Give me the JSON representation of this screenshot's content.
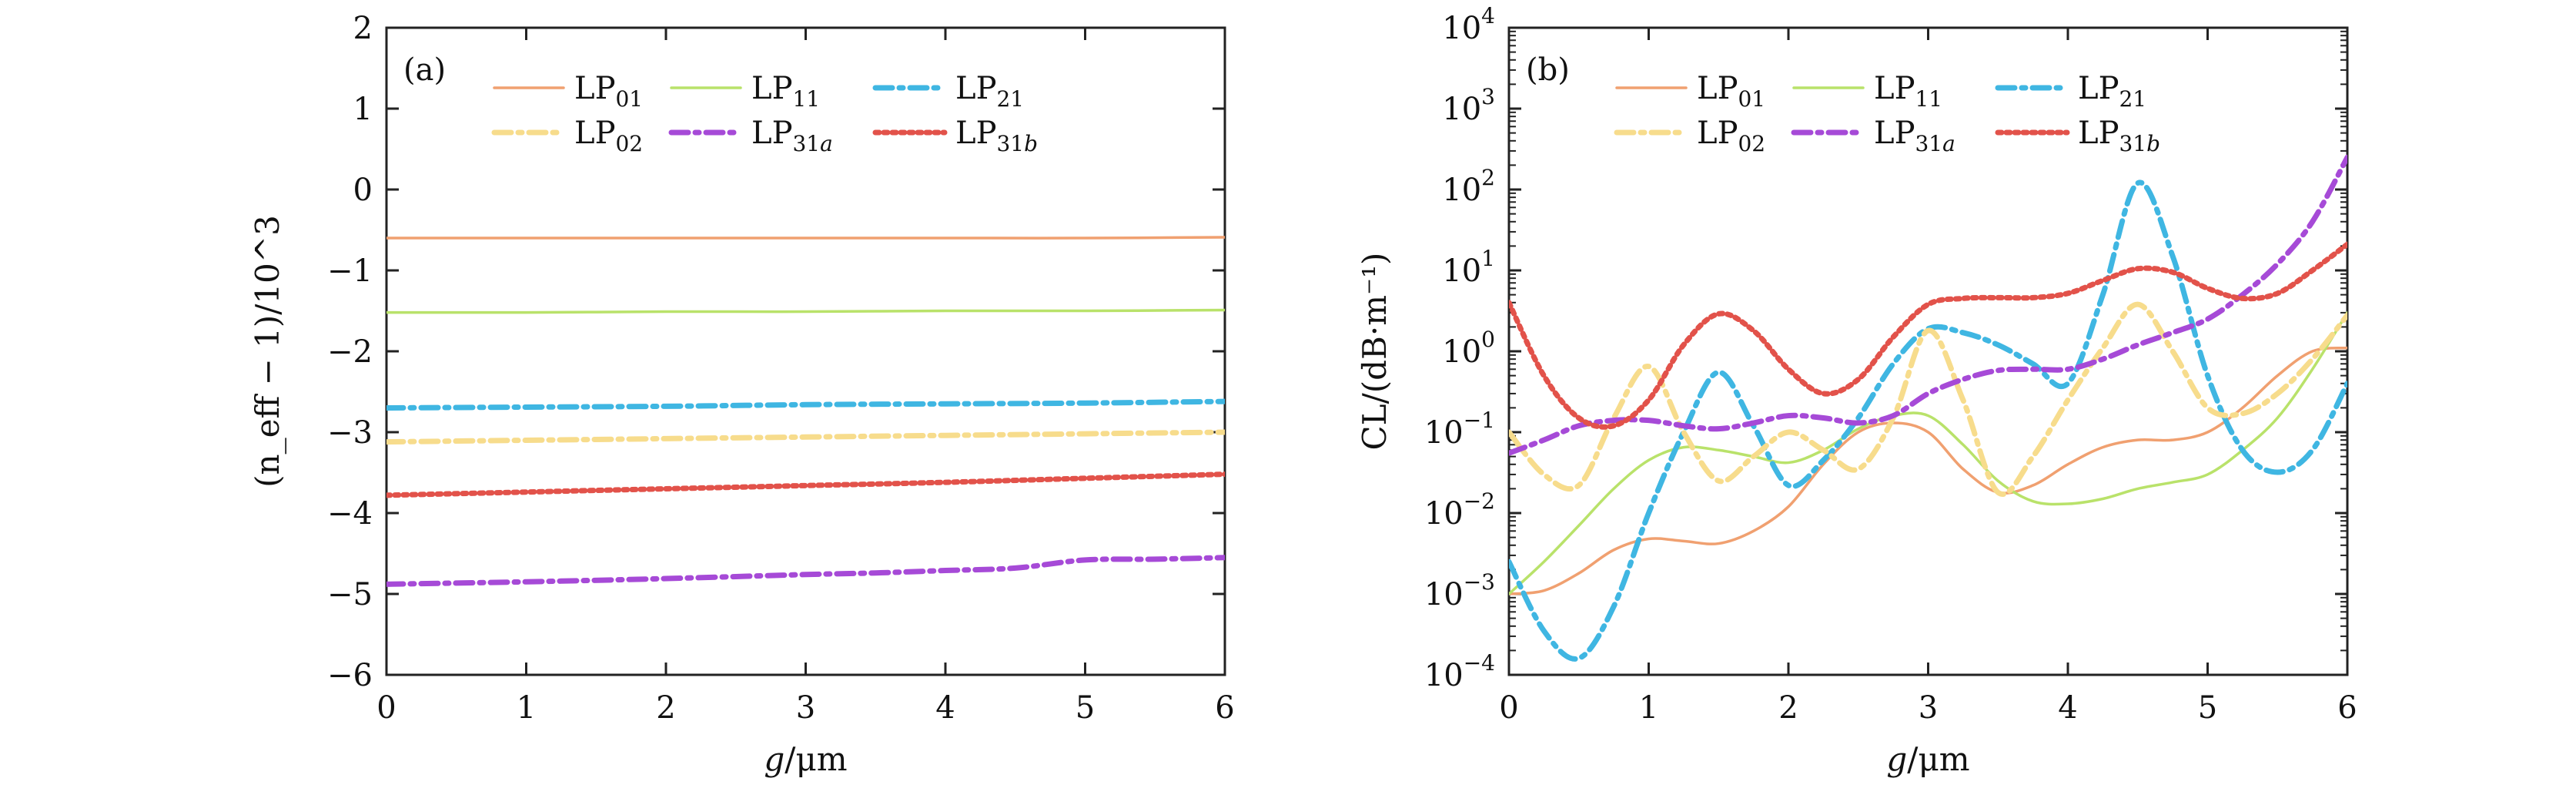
{
  "figure_labels": [
    "(a)",
    "(b)"
  ],
  "chart_data": [
    {
      "type": "line",
      "panel": "(a)",
      "xlabel": "g/μm",
      "ylabel": "(n_eff − 1)/10^3",
      "xlim": [
        0,
        6
      ],
      "ylim": [
        -6,
        2
      ],
      "xticks": [
        "0",
        "1",
        "2",
        "3",
        "4",
        "5",
        "6"
      ],
      "yticks": [
        "−6",
        "−5",
        "−4",
        "−3",
        "−2",
        "−1",
        "0",
        "1",
        "2"
      ],
      "legend": {
        "position": "top",
        "labels": [
          {
            "name": "LP",
            "sub": "01"
          },
          {
            "name": "LP",
            "sub": "11"
          },
          {
            "name": "LP",
            "sub": "21"
          },
          {
            "name": "LP",
            "sub": "02"
          },
          {
            "name": "LP",
            "sub": "31a"
          },
          {
            "name": "LP",
            "sub": "31b"
          }
        ]
      },
      "series": [
        {
          "name": "LP01",
          "color": "#f0a070",
          "style": "solid",
          "x": [
            0,
            1,
            2,
            3,
            4,
            5,
            6
          ],
          "y": [
            -0.6,
            -0.6,
            -0.6,
            -0.6,
            -0.6,
            -0.6,
            -0.59
          ]
        },
        {
          "name": "LP11",
          "color": "#b9e26a",
          "style": "solid",
          "x": [
            0,
            1,
            2,
            3,
            4,
            5,
            6
          ],
          "y": [
            -1.52,
            -1.52,
            -1.51,
            -1.51,
            -1.5,
            -1.5,
            -1.49
          ]
        },
        {
          "name": "LP21",
          "color": "#3fb6e2",
          "style": "dashdot",
          "x": [
            0,
            1,
            2,
            3,
            4,
            5,
            6
          ],
          "y": [
            -2.7,
            -2.69,
            -2.68,
            -2.66,
            -2.65,
            -2.64,
            -2.62
          ]
        },
        {
          "name": "LP02",
          "color": "#f7dc8c",
          "style": "dashdot",
          "x": [
            0,
            1,
            2,
            3,
            4,
            5,
            6
          ],
          "y": [
            -3.12,
            -3.1,
            -3.08,
            -3.06,
            -3.04,
            -3.02,
            -3.0
          ]
        },
        {
          "name": "LP31a",
          "color": "#a64ad7",
          "style": "dashdot",
          "x": [
            0,
            1,
            2,
            3,
            3.5,
            4,
            4.5,
            5,
            5.5,
            6
          ],
          "y": [
            -4.88,
            -4.85,
            -4.81,
            -4.76,
            -4.74,
            -4.71,
            -4.68,
            -4.58,
            -4.57,
            -4.55
          ]
        },
        {
          "name": "LP31b",
          "color": "#e2524a",
          "style": "dotted",
          "x": [
            0,
            1,
            2,
            3,
            4,
            5,
            6
          ],
          "y": [
            -3.78,
            -3.74,
            -3.7,
            -3.66,
            -3.62,
            -3.57,
            -3.52
          ]
        }
      ]
    },
    {
      "type": "line",
      "panel": "(b)",
      "xlabel": "g/μm",
      "ylabel": "CL/(dB·m⁻¹)",
      "yscale": "log",
      "xlim": [
        0,
        6
      ],
      "ylim_exp": [
        -4,
        4
      ],
      "xticks": [
        "0",
        "1",
        "2",
        "3",
        "4",
        "5",
        "6"
      ],
      "yticks": [
        {
          "base": "10",
          "exp": "−4"
        },
        {
          "base": "10",
          "exp": "−3"
        },
        {
          "base": "10",
          "exp": "−2"
        },
        {
          "base": "10",
          "exp": "−1"
        },
        {
          "base": "10",
          "exp": "0"
        },
        {
          "base": "10",
          "exp": "1"
        },
        {
          "base": "10",
          "exp": "2"
        },
        {
          "base": "10",
          "exp": "3"
        },
        {
          "base": "10",
          "exp": "4"
        }
      ],
      "legend": {
        "position": "top",
        "labels": [
          {
            "name": "LP",
            "sub": "01"
          },
          {
            "name": "LP",
            "sub": "11"
          },
          {
            "name": "LP",
            "sub": "21"
          },
          {
            "name": "LP",
            "sub": "02"
          },
          {
            "name": "LP",
            "sub": "31a"
          },
          {
            "name": "LP",
            "sub": "31b"
          }
        ]
      },
      "series": [
        {
          "name": "LP01",
          "color": "#f0a070",
          "style": "solid",
          "x": [
            0,
            0.25,
            0.5,
            0.75,
            1.0,
            1.25,
            1.5,
            1.75,
            2.0,
            2.25,
            2.5,
            2.75,
            3.0,
            3.25,
            3.5,
            3.75,
            4.0,
            4.25,
            4.5,
            4.75,
            5.0,
            5.25,
            5.5,
            5.75,
            6.0
          ],
          "y": [
            0.001,
            0.0011,
            0.0018,
            0.0035,
            0.0048,
            0.0045,
            0.0042,
            0.006,
            0.012,
            0.04,
            0.1,
            0.13,
            0.1,
            0.035,
            0.018,
            0.022,
            0.04,
            0.065,
            0.08,
            0.08,
            0.1,
            0.2,
            0.5,
            1.0,
            1.1
          ]
        },
        {
          "name": "LP11",
          "color": "#b9e26a",
          "style": "solid",
          "x": [
            0,
            0.25,
            0.5,
            0.75,
            1.0,
            1.25,
            1.5,
            1.75,
            2.0,
            2.25,
            2.5,
            2.75,
            3.0,
            3.25,
            3.5,
            3.75,
            4.0,
            4.25,
            4.5,
            4.75,
            5.0,
            5.25,
            5.5,
            5.75,
            6.0
          ],
          "y": [
            0.001,
            0.0025,
            0.007,
            0.02,
            0.045,
            0.065,
            0.06,
            0.05,
            0.042,
            0.06,
            0.11,
            0.16,
            0.16,
            0.07,
            0.025,
            0.014,
            0.013,
            0.015,
            0.02,
            0.024,
            0.03,
            0.06,
            0.15,
            0.6,
            3.0
          ]
        },
        {
          "name": "LP21",
          "color": "#3fb6e2",
          "style": "dashdot",
          "x": [
            0,
            0.25,
            0.5,
            0.75,
            1.0,
            1.25,
            1.5,
            1.75,
            2.0,
            2.25,
            2.5,
            2.75,
            3.0,
            3.25,
            3.5,
            3.75,
            4.0,
            4.25,
            4.5,
            4.75,
            5.0,
            5.25,
            5.5,
            5.75,
            6.0
          ],
          "y": [
            0.0025,
            0.00035,
            0.00016,
            0.0007,
            0.01,
            0.1,
            0.55,
            0.12,
            0.022,
            0.045,
            0.15,
            0.7,
            1.9,
            1.7,
            1.2,
            0.7,
            0.4,
            5,
            120,
            15,
            0.5,
            0.06,
            0.032,
            0.06,
            0.4
          ]
        },
        {
          "name": "LP02",
          "color": "#f7dc8c",
          "style": "dashdot",
          "x": [
            0,
            0.25,
            0.5,
            0.75,
            1.0,
            1.25,
            1.5,
            1.75,
            2.0,
            2.25,
            2.5,
            2.75,
            3.0,
            3.25,
            3.5,
            3.75,
            4.0,
            4.25,
            4.5,
            4.75,
            5.0,
            5.25,
            5.5,
            5.75,
            6.0
          ],
          "y": [
            0.1,
            0.03,
            0.022,
            0.15,
            0.65,
            0.1,
            0.025,
            0.05,
            0.1,
            0.06,
            0.035,
            0.15,
            1.8,
            0.25,
            0.018,
            0.05,
            0.25,
            1.1,
            3.8,
            1.0,
            0.2,
            0.17,
            0.3,
            0.8,
            2.8
          ]
        },
        {
          "name": "LP31a",
          "color": "#a64ad7",
          "style": "dashdot",
          "x": [
            0,
            0.25,
            0.5,
            0.75,
            1.0,
            1.25,
            1.5,
            1.75,
            2.0,
            2.25,
            2.5,
            2.75,
            3.0,
            3.25,
            3.5,
            3.75,
            4.0,
            4.25,
            4.5,
            4.75,
            5.0,
            5.25,
            5.5,
            5.75,
            6.0
          ],
          "y": [
            0.055,
            0.08,
            0.12,
            0.14,
            0.14,
            0.12,
            0.11,
            0.13,
            0.16,
            0.15,
            0.13,
            0.16,
            0.3,
            0.45,
            0.58,
            0.6,
            0.6,
            0.8,
            1.2,
            1.7,
            2.5,
            5,
            12,
            40,
            250
          ]
        },
        {
          "name": "LP31b",
          "color": "#e2524a",
          "style": "dotted",
          "x": [
            0,
            0.25,
            0.5,
            0.75,
            1.0,
            1.25,
            1.5,
            1.75,
            2.0,
            2.25,
            2.5,
            2.75,
            3.0,
            3.25,
            3.5,
            3.75,
            4.0,
            4.25,
            4.5,
            4.75,
            5.0,
            5.25,
            5.5,
            5.75,
            6.0
          ],
          "y": [
            4,
            0.5,
            0.15,
            0.12,
            0.25,
            1.2,
            2.9,
            1.8,
            0.6,
            0.3,
            0.45,
            1.5,
            3.8,
            4.5,
            4.6,
            4.6,
            5.2,
            7.5,
            10.5,
            9.5,
            6,
            4.5,
            5.2,
            10,
            21
          ]
        }
      ]
    }
  ]
}
